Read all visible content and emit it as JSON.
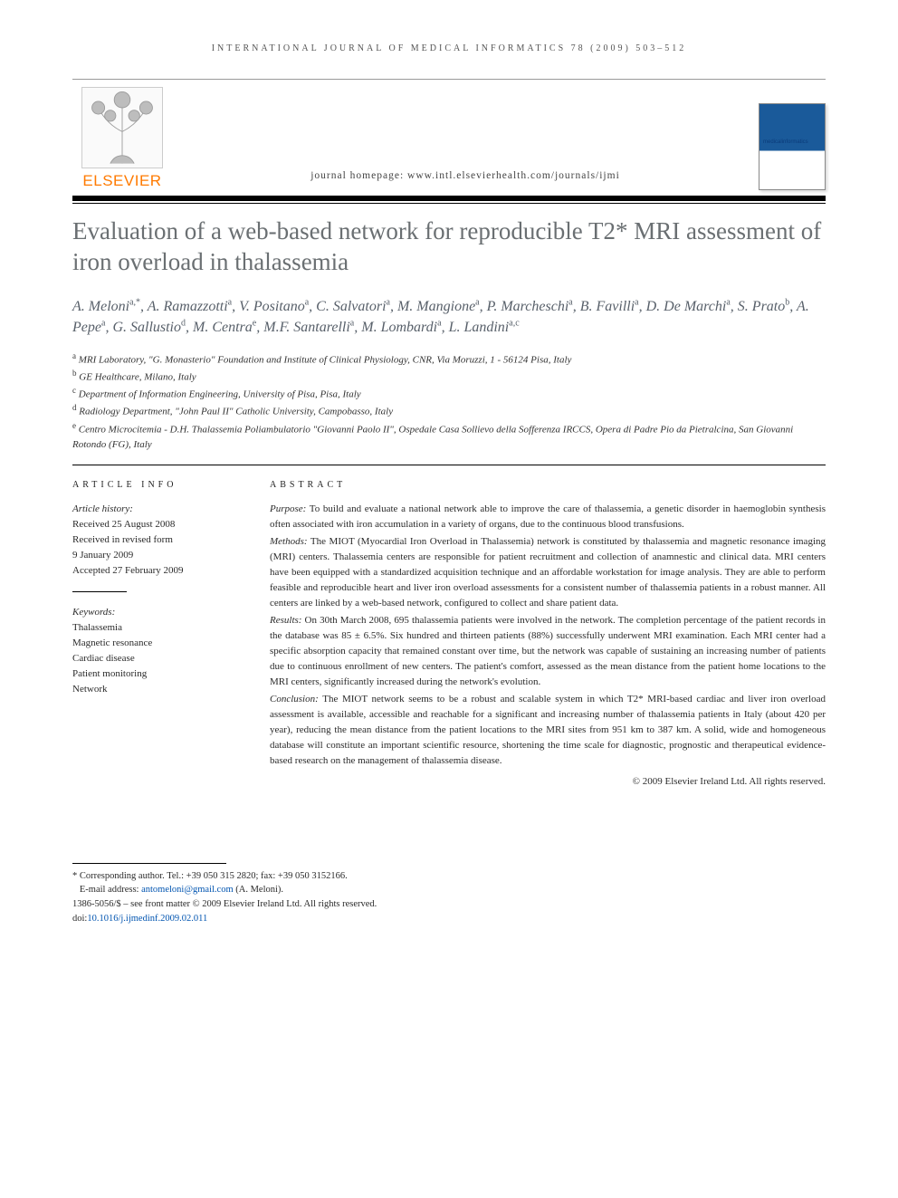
{
  "running_header": "INTERNATIONAL JOURNAL OF MEDICAL INFORMATICS 78 (2009) 503–512",
  "publisher_word": "ELSEVIER",
  "journal_homepage": "journal homepage: www.intl.elsevierhealth.com/journals/ijmi",
  "cover_title": "medicalinformatics",
  "title": "Evaluation of a web-based network for reproducible T2* MRI assessment of iron overload in thalassemia",
  "authors_html": "A. Meloni<sup>a,*</sup>, A. Ramazzotti<sup>a</sup>, V. Positano<sup>a</sup>, C. Salvatori<sup>a</sup>, M. Mangione<sup>a</sup>, P. Marcheschi<sup>a</sup>, B. Favilli<sup>a</sup>, D. De Marchi<sup>a</sup>, S. Prato<sup>b</sup>, A. Pepe<sup>a</sup>, G. Sallustio<sup>d</sup>, M. Centra<sup>e</sup>, M.F. Santarelli<sup>a</sup>, M. Lombardi<sup>a</sup>, L. Landini<sup>a,c</sup>",
  "affiliations": [
    {
      "sup": "a",
      "text": "MRI Laboratory, \"G. Monasterio\" Foundation and Institute of Clinical Physiology, CNR, Via Moruzzi, 1 - 56124 Pisa, Italy"
    },
    {
      "sup": "b",
      "text": "GE Healthcare, Milano, Italy"
    },
    {
      "sup": "c",
      "text": "Department of Information Engineering, University of Pisa, Pisa, Italy"
    },
    {
      "sup": "d",
      "text": "Radiology Department, \"John Paul II\" Catholic University, Campobasso, Italy"
    },
    {
      "sup": "e",
      "text": "Centro Microcitemia - D.H. Thalassemia Poliambulatorio \"Giovanni Paolo II\", Ospedale Casa Sollievo della Sofferenza IRCCS, Opera di Padre Pio da Pietralcina, San Giovanni Rotondo (FG), Italy"
    }
  ],
  "article_info_head": "ARTICLE INFO",
  "history_head": "Article history:",
  "history_lines": [
    "Received 25 August 2008",
    "Received in revised form",
    "9 January 2009",
    "Accepted 27 February 2009"
  ],
  "keywords_head": "Keywords:",
  "keywords": [
    "Thalassemia",
    "Magnetic resonance",
    "Cardiac disease",
    "Patient monitoring",
    "Network"
  ],
  "abstract_head": "ABSTRACT",
  "abstract_paras": [
    {
      "runin": "Purpose:",
      "text": " To build and evaluate a national network able to improve the care of thalassemia, a genetic disorder in haemoglobin synthesis often associated with iron accumulation in a variety of organs, due to the continuous blood transfusions."
    },
    {
      "runin": "Methods:",
      "text": " The MIOT (Myocardial Iron Overload in Thalassemia) network is constituted by thalassemia and magnetic resonance imaging (MRI) centers. Thalassemia centers are responsible for patient recruitment and collection of anamnestic and clinical data. MRI centers have been equipped with a standardized acquisition technique and an affordable workstation for image analysis. They are able to perform feasible and reproducible heart and liver iron overload assessments for a consistent number of thalassemia patients in a robust manner. All centers are linked by a web-based network, configured to collect and share patient data."
    },
    {
      "runin": "Results:",
      "text": " On 30th March 2008, 695 thalassemia patients were involved in the network. The completion percentage of the patient records in the database was 85 ± 6.5%. Six hundred and thirteen patients (88%) successfully underwent MRI examination. Each MRI center had a specific absorption capacity that remained constant over time, but the network was capable of sustaining an increasing number of patients due to continuous enrollment of new centers. The patient's comfort, assessed as the mean distance from the patient home locations to the MRI centers, significantly increased during the network's evolution."
    },
    {
      "runin": "Conclusion:",
      "text": " The MIOT network seems to be a robust and scalable system in which T2* MRI-based cardiac and liver iron overload assessment is available, accessible and reachable for a significant and increasing number of thalassemia patients in Italy (about 420 per year), reducing the mean distance from the patient locations to the MRI sites from 951 km to 387 km. A solid, wide and homogeneous database will constitute an important scientific resource, shortening the time scale for diagnostic, prognostic and therapeutical evidence-based research on the management of thalassemia disease."
    }
  ],
  "abstract_copyright": "© 2009 Elsevier Ireland Ltd. All rights reserved.",
  "corr_author_line": "* Corresponding author. Tel.: +39 050 315 2820; fax: +39 050 3152166.",
  "email_label": "E-mail address: ",
  "email": "antomeloni@gmail.com",
  "email_tail": " (A. Meloni).",
  "issn_line": "1386-5056/$ – see front matter © 2009 Elsevier Ireland Ltd. All rights reserved.",
  "doi_label": "doi:",
  "doi": "10.1016/j.ijmedinf.2009.02.011"
}
